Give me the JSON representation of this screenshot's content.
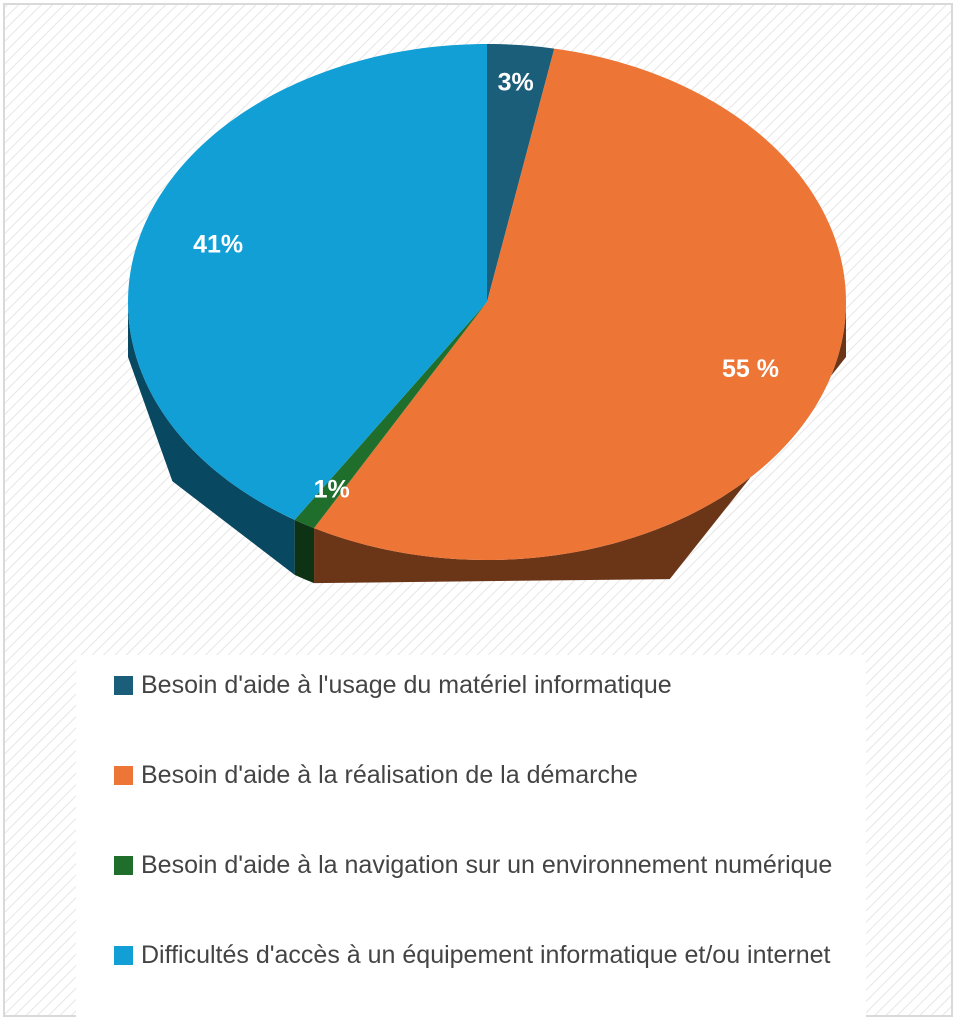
{
  "chart_data": {
    "type": "pie",
    "categories": [
      "Besoin d'aide à l'usage du matériel informatique",
      "Besoin d'aide à la réalisation de la démarche",
      "Besoin d'aide à la navigation sur un environnement numérique",
      "Difficultés d'accès à un équipement informatique et/ou internet"
    ],
    "values": [
      3,
      55,
      1,
      41
    ],
    "value_labels": [
      "3%",
      "55 %",
      "1%",
      "41%"
    ],
    "colors": [
      "#1a5e7a",
      "#ed7536",
      "#1f6e2c",
      "#129fd6"
    ],
    "legend": "bottom"
  }
}
